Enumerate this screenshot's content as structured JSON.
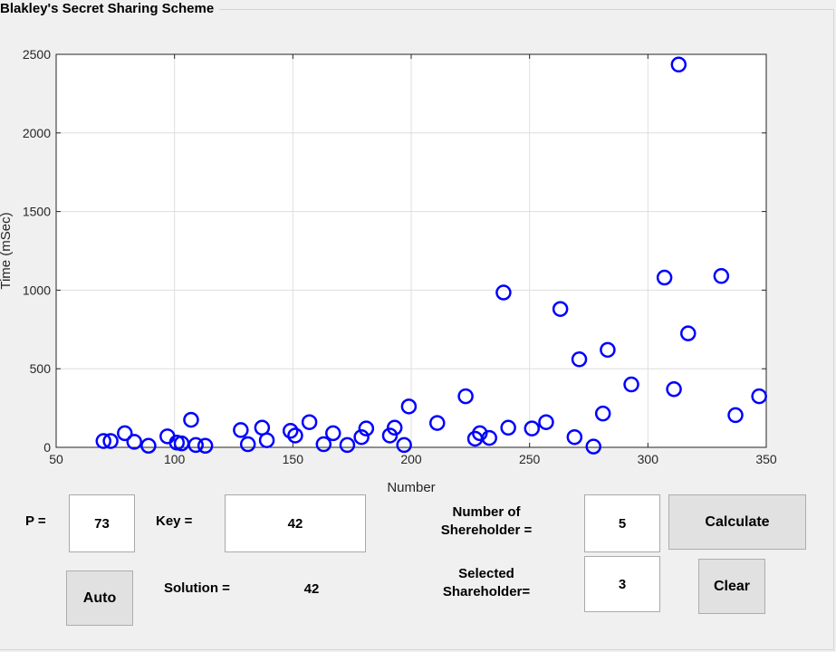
{
  "panel": {
    "title": "Blakley's Secret Sharing Scheme"
  },
  "chart_data": {
    "type": "scatter",
    "xlabel": "Number",
    "ylabel": "Time (mSec)",
    "xlim": [
      50,
      350
    ],
    "ylim": [
      0,
      2500
    ],
    "xticks": [
      50,
      100,
      150,
      200,
      250,
      300,
      350
    ],
    "yticks": [
      0,
      500,
      1000,
      1500,
      2000,
      2500
    ],
    "grid": true,
    "marker": "circle-open",
    "color": "#0000ff",
    "x": [
      70,
      73,
      79,
      83,
      89,
      97,
      101,
      103,
      107,
      109,
      113,
      128,
      131,
      137,
      139,
      149,
      151,
      157,
      163,
      167,
      173,
      179,
      181,
      191,
      193,
      197,
      199,
      211,
      223,
      227,
      229,
      233,
      239,
      241,
      251,
      257,
      263,
      269,
      271,
      277,
      281,
      283,
      293,
      307,
      311,
      313,
      317,
      331,
      337,
      347
    ],
    "y": [
      40,
      40,
      90,
      35,
      10,
      70,
      30,
      25,
      175,
      15,
      10,
      110,
      20,
      125,
      45,
      105,
      75,
      160,
      20,
      90,
      15,
      65,
      120,
      75,
      125,
      15,
      260,
      155,
      325,
      55,
      90,
      60,
      985,
      125,
      120,
      160,
      880,
      65,
      560,
      5,
      215,
      620,
      400,
      1080,
      370,
      2435,
      725,
      1090,
      205,
      325
    ]
  },
  "form": {
    "p_label": "P =",
    "p_value": "73",
    "key_label": "Key =",
    "key_value": "42",
    "num_shareholder_label_1": "Number of",
    "num_shareholder_label_2": "Shereholder =",
    "num_shareholder_value": "5",
    "calculate_label": "Calculate",
    "auto_label": "Auto",
    "solution_label": "Solution =",
    "solution_value": "42",
    "selected_label_1": "Selected",
    "selected_label_2": "Shareholder=",
    "selected_value": "3",
    "clear_label": "Clear"
  }
}
